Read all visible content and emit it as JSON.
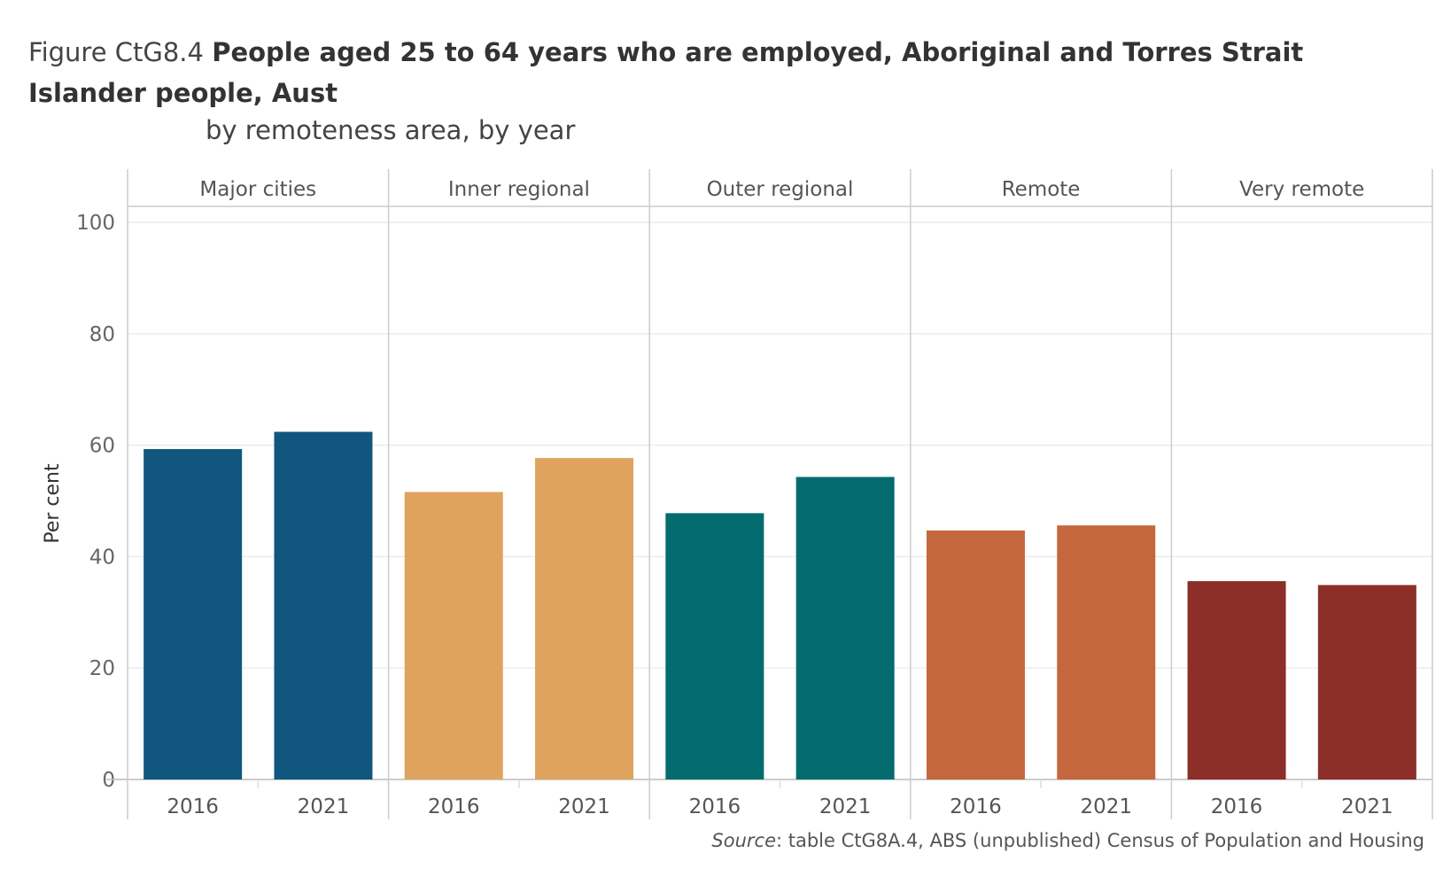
{
  "title": {
    "prefix": "Figure CtG8.4",
    "main": "People aged 25 to 64 years who are employed, Aboriginal and Torres Strait Islander people, Aust",
    "subtitle": "by remoteness area, by year"
  },
  "source": {
    "label": "Source",
    "text": ": table CtG8A.4, ABS (unpublished) Census of Population and Housing"
  },
  "chart_data": {
    "type": "bar",
    "ylabel": "Per cent",
    "ylim": [
      0,
      100
    ],
    "yticks": [
      0,
      20,
      40,
      60,
      80,
      100
    ],
    "grid": true,
    "panels": [
      {
        "name": "Major cities",
        "color": "#11567f",
        "categories": [
          "2016",
          "2021"
        ],
        "values": [
          59.3,
          62.4
        ]
      },
      {
        "name": "Inner regional",
        "color": "#dfa35d",
        "categories": [
          "2016",
          "2021"
        ],
        "values": [
          51.6,
          57.7
        ]
      },
      {
        "name": "Outer regional",
        "color": "#046b6f",
        "categories": [
          "2016",
          "2021"
        ],
        "values": [
          47.8,
          54.3
        ]
      },
      {
        "name": "Remote",
        "color": "#c4673d",
        "categories": [
          "2016",
          "2021"
        ],
        "values": [
          44.7,
          45.6
        ]
      },
      {
        "name": "Very remote",
        "color": "#8b2f28",
        "categories": [
          "2016",
          "2021"
        ],
        "values": [
          35.6,
          34.9
        ]
      }
    ]
  }
}
